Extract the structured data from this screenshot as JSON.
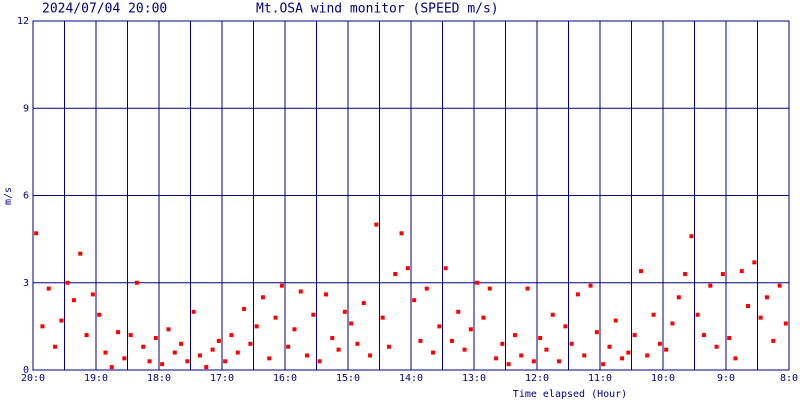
{
  "chart_data": {
    "type": "scatter",
    "title": "Mt.OSA wind monitor (SPEED m/s)",
    "subtitle": "2024/07/04 20:00",
    "x_label": "Time elapsed (Hour)",
    "y_label": "m/s",
    "color": "#ff0000",
    "grid": true,
    "xlim": [
      0,
      12
    ],
    "ylim": [
      0,
      12
    ],
    "yticks": [
      0,
      3,
      6,
      9,
      12
    ],
    "xticks": [
      {
        "value": 0,
        "label": "20:0"
      },
      {
        "value": 1,
        "label": "19:0"
      },
      {
        "value": 2,
        "label": "18:0"
      },
      {
        "value": 3,
        "label": "17:0"
      },
      {
        "value": 4,
        "label": "16:0"
      },
      {
        "value": 5,
        "label": "15:0"
      },
      {
        "value": 6,
        "label": "14:0"
      },
      {
        "value": 7,
        "label": "13:0"
      },
      {
        "value": 8,
        "label": "12:0"
      },
      {
        "value": 9,
        "label": "11:0"
      },
      {
        "value": 10,
        "label": "10:0"
      },
      {
        "value": 11,
        "label": "9:0"
      },
      {
        "value": 12,
        "label": "8:0"
      }
    ],
    "xminor_ticks": [
      0.5,
      1.5,
      2.5,
      3.5,
      4.5,
      5.5,
      6.5,
      7.5,
      8.5,
      9.5,
      10.5,
      11.5
    ],
    "x": [
      0.05,
      0.15,
      0.25,
      0.35,
      0.45,
      0.55,
      0.65,
      0.75,
      0.85,
      0.95,
      1.05,
      1.15,
      1.25,
      1.35,
      1.45,
      1.55,
      1.65,
      1.75,
      1.85,
      1.95,
      2.05,
      2.15,
      2.25,
      2.35,
      2.45,
      2.55,
      2.65,
      2.75,
      2.85,
      2.95,
      3.05,
      3.15,
      3.25,
      3.35,
      3.45,
      3.55,
      3.65,
      3.75,
      3.85,
      3.95,
      4.05,
      4.15,
      4.25,
      4.35,
      4.45,
      4.55,
      4.65,
      4.75,
      4.85,
      4.95,
      5.05,
      5.15,
      5.25,
      5.35,
      5.45,
      5.55,
      5.65,
      5.75,
      5.85,
      5.95,
      6.05,
      6.15,
      6.25,
      6.35,
      6.45,
      6.55,
      6.65,
      6.75,
      6.85,
      6.95,
      7.05,
      7.15,
      7.25,
      7.35,
      7.45,
      7.55,
      7.65,
      7.75,
      7.85,
      7.95,
      8.05,
      8.15,
      8.25,
      8.35,
      8.45,
      8.55,
      8.65,
      8.75,
      8.85,
      8.95,
      9.05,
      9.15,
      9.25,
      9.35,
      9.45,
      9.55,
      9.65,
      9.75,
      9.85,
      9.95,
      10.05,
      10.15,
      10.25,
      10.35,
      10.45,
      10.55,
      10.65,
      10.75,
      10.85,
      10.95,
      11.05,
      11.15,
      11.25,
      11.35,
      11.45,
      11.55,
      11.65,
      11.75,
      11.85,
      11.95
    ],
    "values": [
      4.7,
      1.5,
      2.8,
      0.8,
      1.7,
      3.0,
      2.4,
      4.0,
      1.2,
      2.6,
      1.9,
      0.6,
      0.1,
      1.3,
      0.4,
      1.2,
      3.0,
      0.8,
      0.3,
      1.1,
      0.2,
      1.4,
      0.6,
      0.9,
      0.3,
      2.0,
      0.5,
      0.1,
      0.7,
      1.0,
      0.3,
      1.2,
      0.6,
      2.1,
      0.9,
      1.5,
      2.5,
      0.4,
      1.8,
      2.9,
      0.8,
      1.4,
      2.7,
      0.5,
      1.9,
      0.3,
      2.6,
      1.1,
      0.7,
      2.0,
      1.6,
      0.9,
      2.3,
      0.5,
      5.0,
      1.8,
      0.8,
      3.3,
      4.7,
      3.5,
      2.4,
      1.0,
      2.8,
      0.6,
      1.5,
      3.5,
      1.0,
      2.0,
      0.7,
      1.4,
      3.0,
      1.8,
      2.8,
      0.4,
      0.9,
      0.2,
      1.2,
      0.5,
      2.8,
      0.3,
      1.1,
      0.7,
      1.9,
      0.3,
      1.5,
      0.9,
      2.6,
      0.5,
      2.9,
      1.3,
      0.2,
      0.8,
      1.7,
      0.4,
      0.6,
      1.2,
      3.4,
      0.5,
      1.9,
      0.9,
      0.7,
      1.6,
      2.5,
      3.3,
      4.6,
      1.9,
      1.2,
      2.9,
      0.8,
      3.3,
      1.1,
      0.4,
      3.4,
      2.2,
      3.7,
      1.8,
      2.5,
      1.0,
      2.9,
      1.6
    ]
  }
}
